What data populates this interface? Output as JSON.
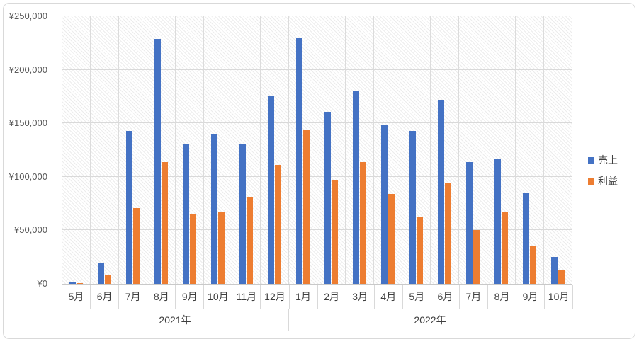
{
  "chart_data": {
    "type": "bar",
    "title": "",
    "categories": [
      "5月",
      "6月",
      "7月",
      "8月",
      "9月",
      "10月",
      "11月",
      "12月",
      "1月",
      "2月",
      "3月",
      "4月",
      "5月",
      "6月",
      "7月",
      "8月",
      "9月",
      "10月"
    ],
    "category_groups": [
      {
        "label": "2021年",
        "span": 8
      },
      {
        "label": "2022年",
        "span": 10
      }
    ],
    "series": [
      {
        "name": "売上",
        "color": "#4472C4",
        "values": [
          2000,
          20000,
          143000,
          229000,
          130000,
          140000,
          130000,
          175000,
          230000,
          161000,
          180000,
          149000,
          143000,
          172000,
          114000,
          117000,
          85000,
          25000
        ]
      },
      {
        "name": "利益",
        "color": "#ED7D31",
        "values": [
          1000,
          8000,
          71000,
          114000,
          65000,
          67000,
          81000,
          111000,
          144000,
          97000,
          114000,
          84000,
          63000,
          94000,
          50000,
          67000,
          36000,
          13000
        ]
      }
    ],
    "ylim": [
      0,
      250000
    ],
    "ytick_step": 50000,
    "ytick_labels": [
      "¥0",
      "¥50,000",
      "¥100,000",
      "¥150,000",
      "¥200,000",
      "¥250,000"
    ],
    "grid": "horizontal and vertical gridlines",
    "plot_background": "light diagonal hatch pattern",
    "legend_position": "right"
  },
  "colors": {
    "sales_series": "#4472C4",
    "profit_series": "#ED7D31",
    "gridline": "#D9D9D9",
    "axis_text": "#595959",
    "category_text": "#3F3F3F",
    "frame_border": "#D9D9D9",
    "background": "#FFFFFF"
  }
}
